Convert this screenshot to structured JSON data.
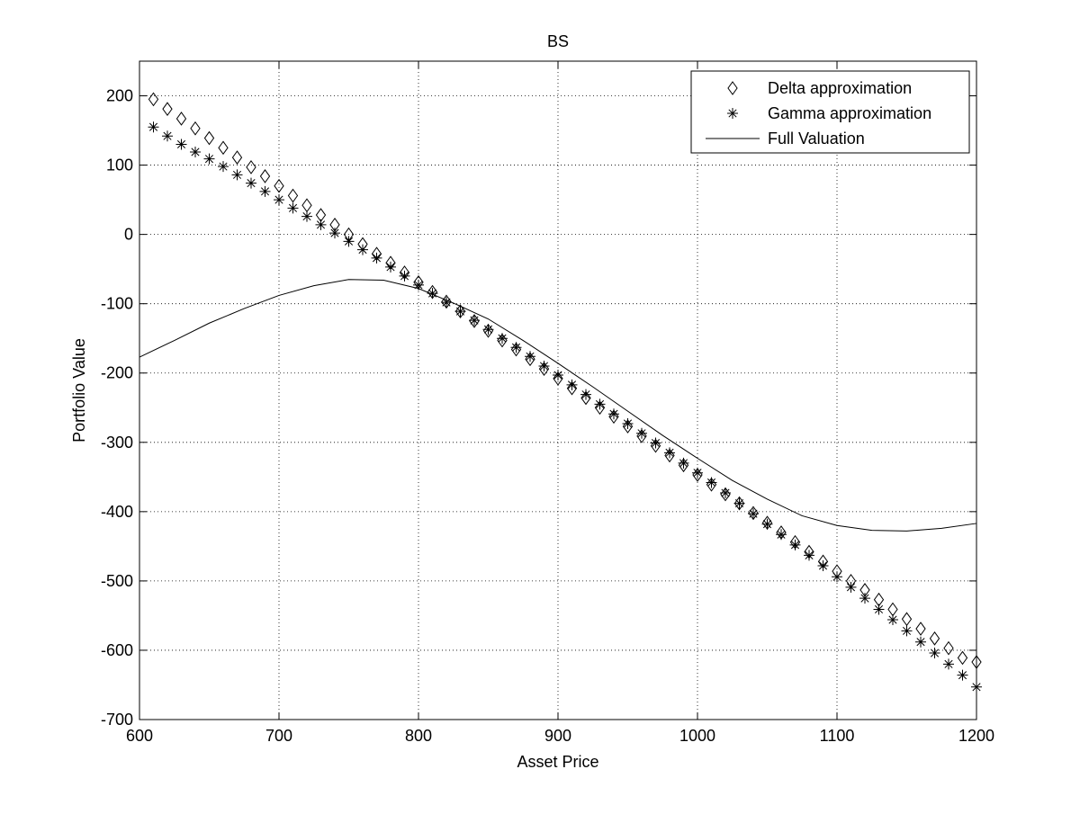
{
  "chart_data": {
    "type": "scatter",
    "title": "BS",
    "xlabel": "Asset Price",
    "ylabel": "Portfolio Value",
    "xlim": [
      600,
      1200
    ],
    "ylim": [
      -700,
      250
    ],
    "xticks": [
      600,
      700,
      800,
      900,
      1000,
      1100,
      1200
    ],
    "yticks": [
      -700,
      -600,
      -500,
      -400,
      -300,
      -200,
      -100,
      0,
      100,
      200
    ],
    "grid": true,
    "grid_style": "dotted",
    "legend_position": "top-right",
    "colors": {
      "axes": "#000000",
      "grid": "#000000",
      "series": "#000000"
    },
    "series": [
      {
        "name": "Delta approximation",
        "marker": "diamond",
        "x": [
          610,
          620,
          630,
          640,
          650,
          660,
          670,
          680,
          690,
          700,
          710,
          720,
          730,
          740,
          750,
          760,
          770,
          780,
          790,
          800,
          810,
          820,
          830,
          840,
          850,
          860,
          870,
          880,
          890,
          900,
          910,
          920,
          930,
          940,
          950,
          960,
          970,
          980,
          990,
          1000,
          1010,
          1020,
          1030,
          1040,
          1050,
          1060,
          1070,
          1080,
          1090,
          1100,
          1110,
          1120,
          1130,
          1140,
          1150,
          1160,
          1170,
          1180,
          1190,
          1200
        ],
        "y": [
          195,
          181,
          167,
          153,
          139,
          125,
          111,
          97,
          84,
          70,
          56,
          42,
          28,
          14,
          0,
          -14,
          -28,
          -41,
          -55,
          -69,
          -83,
          -97,
          -111,
          -125,
          -139,
          -153,
          -166,
          -180,
          -194,
          -208,
          -222,
          -236,
          -250,
          -263,
          -277,
          -291,
          -305,
          -319,
          -333,
          -347,
          -361,
          -375,
          -388,
          -402,
          -416,
          -430,
          -444,
          -458,
          -472,
          -486,
          -500,
          -513,
          -527,
          -541,
          -555,
          -569,
          -583,
          -597,
          -611,
          -617
        ]
      },
      {
        "name": "Gamma approximation",
        "marker": "asterisk",
        "x": [
          610,
          620,
          630,
          640,
          650,
          660,
          670,
          680,
          690,
          700,
          710,
          720,
          730,
          740,
          750,
          760,
          770,
          780,
          790,
          800,
          810,
          820,
          830,
          840,
          850,
          860,
          870,
          880,
          890,
          900,
          910,
          920,
          930,
          940,
          950,
          960,
          970,
          980,
          990,
          1000,
          1010,
          1020,
          1030,
          1040,
          1050,
          1060,
          1070,
          1080,
          1090,
          1100,
          1110,
          1120,
          1130,
          1140,
          1150,
          1160,
          1170,
          1180,
          1190,
          1200
        ],
        "y": [
          155,
          142,
          130,
          119,
          109,
          98,
          86,
          74,
          62,
          50,
          38,
          26,
          14,
          2,
          -10,
          -22,
          -34,
          -47,
          -60,
          -73,
          -85,
          -98,
          -111,
          -124,
          -137,
          -150,
          -163,
          -176,
          -190,
          -203,
          -217,
          -231,
          -245,
          -259,
          -273,
          -287,
          -301,
          -315,
          -330,
          -344,
          -358,
          -373,
          -388,
          -403,
          -418,
          -433,
          -448,
          -463,
          -478,
          -494,
          -509,
          -525,
          -541,
          -556,
          -572,
          -588,
          -604,
          -620,
          -636,
          -653
        ]
      },
      {
        "name": "Full Valuation",
        "marker": "line",
        "x": [
          600,
          625,
          650,
          675,
          700,
          725,
          750,
          775,
          800,
          825,
          850,
          875,
          900,
          925,
          950,
          975,
          1000,
          1025,
          1050,
          1075,
          1100,
          1125,
          1150,
          1175,
          1200
        ],
        "y": [
          -177,
          -153,
          -128,
          -107,
          -88,
          -74,
          -65,
          -66,
          -78,
          -99,
          -122,
          -153,
          -186,
          -220,
          -255,
          -290,
          -323,
          -355,
          -382,
          -406,
          -420,
          -427,
          -428,
          -424,
          -417
        ]
      }
    ]
  }
}
